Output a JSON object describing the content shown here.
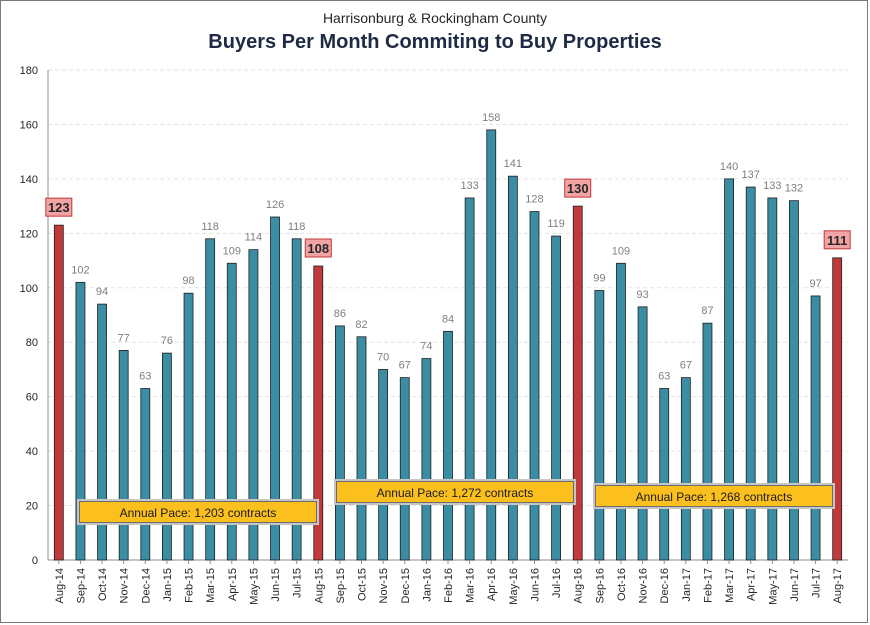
{
  "chart_data": {
    "type": "bar",
    "subtitle": "Harrisonburg & Rockingham County",
    "title": "Buyers Per Month Commiting to Buy Properties",
    "categories": [
      "Aug-14",
      "Sep-14",
      "Oct-14",
      "Nov-14",
      "Dec-14",
      "Jan-15",
      "Feb-15",
      "Mar-15",
      "Apr-15",
      "May-15",
      "Jun-15",
      "Jul-15",
      "Aug-15",
      "Sep-15",
      "Oct-15",
      "Nov-15",
      "Dec-15",
      "Jan-16",
      "Feb-16",
      "Mar-16",
      "Apr-16",
      "May-16",
      "Jun-16",
      "Jul-16",
      "Aug-16",
      "Sep-16",
      "Oct-16",
      "Nov-16",
      "Dec-16",
      "Jan-17",
      "Feb-17",
      "Mar-17",
      "Apr-17",
      "May-17",
      "Jun-17",
      "Jul-17",
      "Aug-17"
    ],
    "values": [
      123,
      102,
      94,
      77,
      63,
      76,
      98,
      118,
      109,
      114,
      126,
      118,
      108,
      86,
      82,
      70,
      67,
      74,
      84,
      133,
      158,
      141,
      128,
      119,
      130,
      99,
      109,
      93,
      63,
      67,
      87,
      140,
      137,
      133,
      132,
      97,
      111
    ],
    "highlight_indices": [
      0,
      12,
      24,
      36
    ],
    "ylim": [
      0,
      180
    ],
    "yticks": [
      0,
      20,
      40,
      60,
      80,
      100,
      120,
      140,
      160,
      180
    ],
    "grid": true,
    "annotations": [
      {
        "text": "Annual Pace: 1,203 contracts"
      },
      {
        "text": "Annual Pace: 1,272 contracts"
      },
      {
        "text": "Annual Pace: 1,268 contracts"
      }
    ],
    "colors": {
      "bar": "#3b8da3",
      "highlight_bar": "#c0393b",
      "highlight_label_bg": "#f2a3a3",
      "highlight_label_border": "#c0393b",
      "annotation_bg": "#fbbf1e",
      "value_label": "#7f7f7f"
    }
  }
}
